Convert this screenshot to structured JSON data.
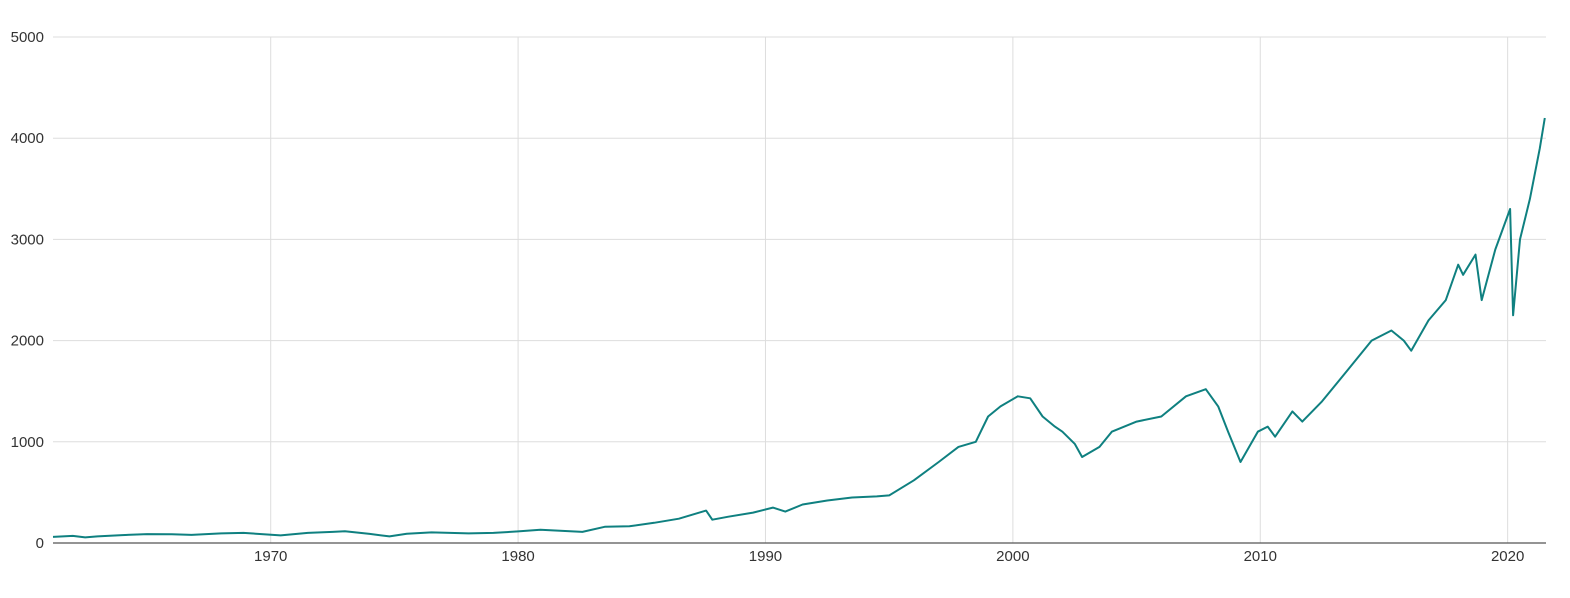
{
  "chart_data": {
    "type": "line",
    "title": "",
    "xlabel": "",
    "ylabel": "",
    "xlim": [
      1961.2,
      2021.55
    ],
    "ylim": [
      0,
      5000
    ],
    "x_ticks": [
      1970,
      1980,
      1990,
      2000,
      2010,
      2020
    ],
    "x_tick_labels": [
      "1970",
      "1980",
      "1990",
      "2000",
      "2010",
      "2020"
    ],
    "y_ticks": [
      0,
      1000,
      2000,
      3000,
      4000,
      5000
    ],
    "y_tick_labels": [
      "0",
      "1000",
      "2000",
      "3000",
      "4000",
      "5000"
    ],
    "grid": true,
    "legend": "none",
    "colors": {
      "line": "#0f8080",
      "grid": "#dddddd",
      "axis": "#555555",
      "text": "#333333"
    },
    "series": [
      {
        "x": [
          1961.2,
          1962.0,
          1962.5,
          1963.0,
          1964.0,
          1965.0,
          1966.0,
          1966.8,
          1968.0,
          1968.9,
          1970.4,
          1971.5,
          1972.5,
          1973.0,
          1974.0,
          1974.8,
          1975.5,
          1976.5,
          1978.0,
          1979.0,
          1980.0,
          1980.9,
          1982.6,
          1983.5,
          1984.5,
          1985.5,
          1986.5,
          1987.6,
          1987.85,
          1988.5,
          1989.5,
          1990.3,
          1990.8,
          1991.5,
          1992.5,
          1993.5,
          1994.5,
          1995.0,
          1996.0,
          1997.0,
          1997.8,
          1998.5,
          1998.7,
          1999.0,
          1999.5,
          2000.2,
          2000.7,
          2001.2,
          2001.7,
          2002.0,
          2002.5,
          2002.8,
          2003.5,
          2004.0,
          2005.0,
          2006.0,
          2007.0,
          2007.8,
          2008.3,
          2008.7,
          2009.2,
          2009.9,
          2010.3,
          2010.6,
          2011.3,
          2011.7,
          2012.5,
          2013.5,
          2014.5,
          2015.3,
          2015.8,
          2016.1,
          2016.8,
          2017.5,
          2018.0,
          2018.2,
          2018.7,
          2018.95,
          2019.5,
          2020.1,
          2020.22,
          2020.5,
          2020.9,
          2021.3,
          2021.5
        ],
        "values": [
          60,
          70,
          55,
          65,
          78,
          88,
          86,
          80,
          95,
          100,
          75,
          100,
          110,
          116,
          90,
          65,
          92,
          105,
          95,
          100,
          115,
          130,
          110,
          160,
          165,
          200,
          240,
          320,
          230,
          260,
          300,
          350,
          310,
          380,
          420,
          450,
          460,
          470,
          620,
          800,
          950,
          1000,
          1100,
          1250,
          1350,
          1450,
          1430,
          1250,
          1150,
          1100,
          980,
          850,
          950,
          1100,
          1200,
          1250,
          1450,
          1520,
          1350,
          1100,
          800,
          1100,
          1150,
          1050,
          1300,
          1200,
          1400,
          1700,
          2000,
          2100,
          2000,
          1900,
          2200,
          2400,
          2750,
          2650,
          2850,
          2400,
          2900,
          3300,
          2250,
          3000,
          3400,
          3900,
          4200
        ]
      }
    ]
  }
}
